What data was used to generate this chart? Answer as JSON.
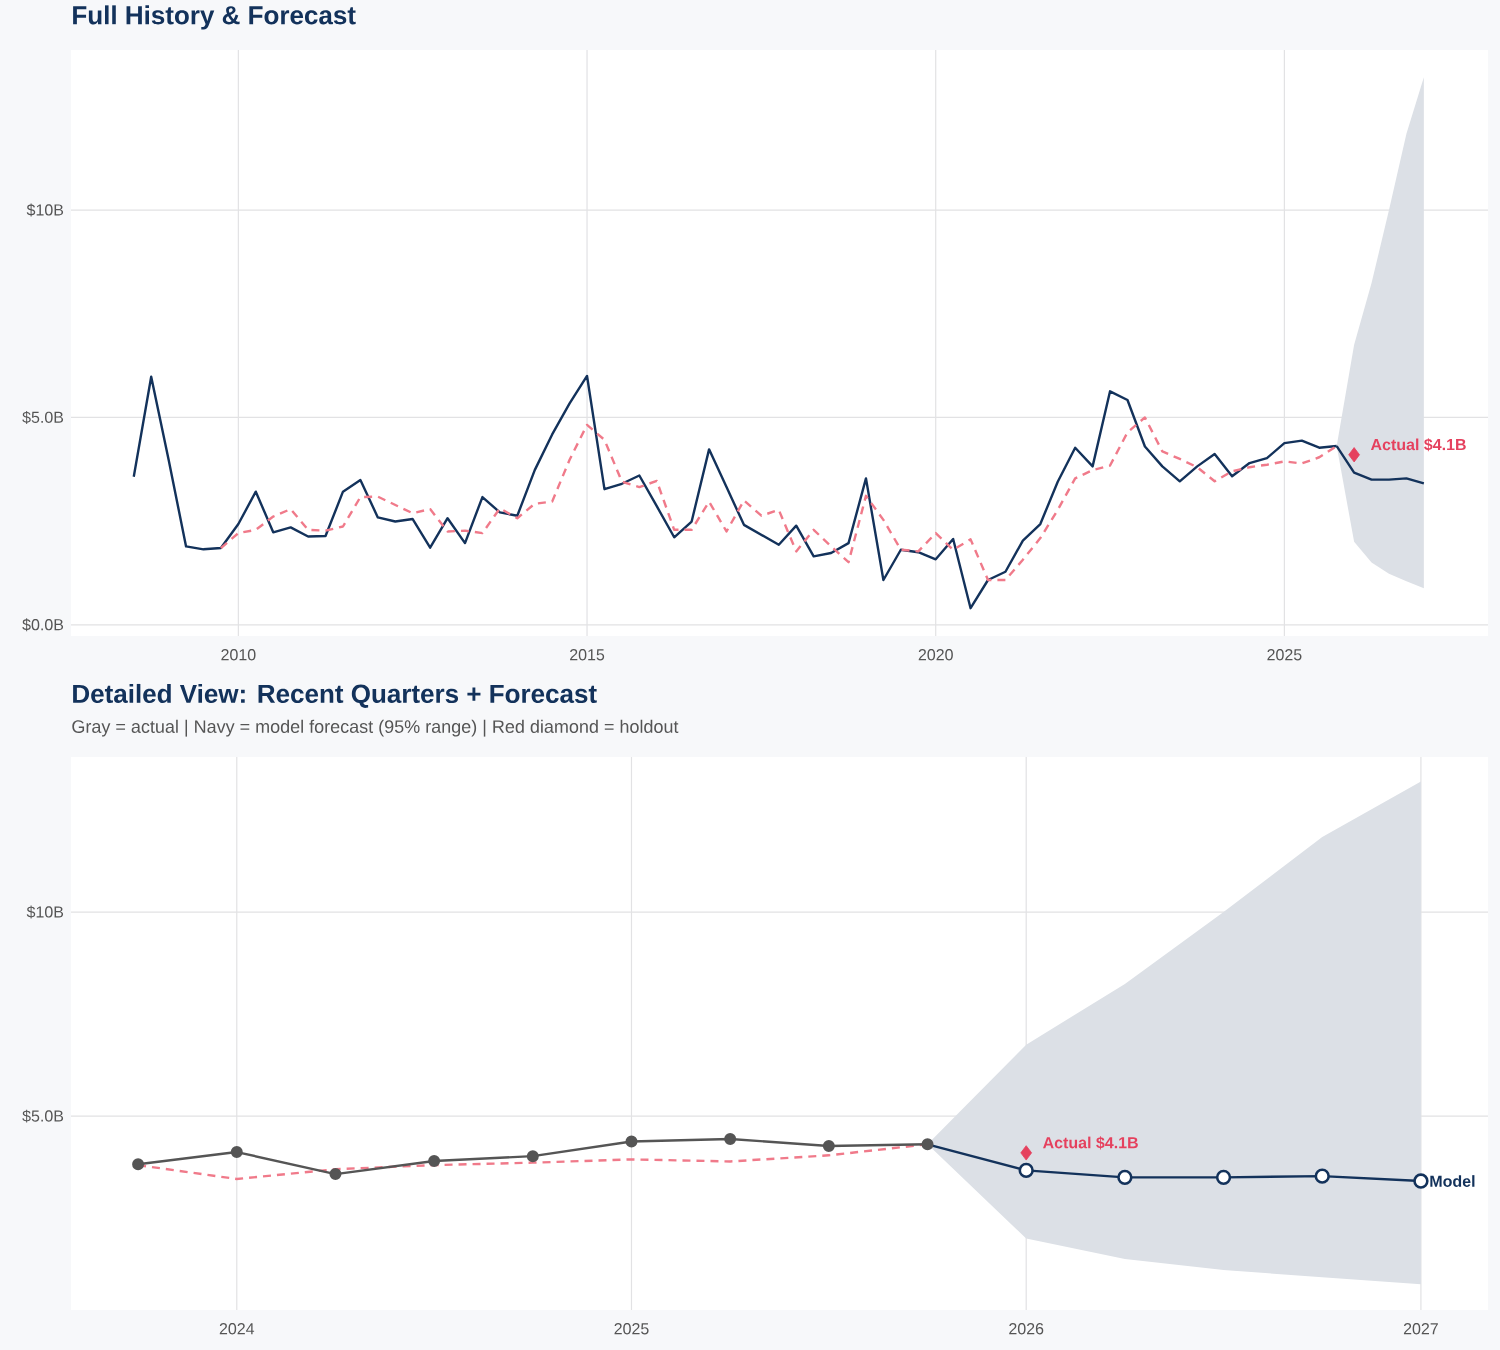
{
  "chart_data": [
    {
      "type": "line",
      "title": "Full History & Forecast",
      "xlim": [
        2007.6,
        2027.92
      ],
      "ylim": [
        -0.27,
        13.86
      ],
      "xticks": [
        2010,
        2015,
        2020,
        2025
      ],
      "yticks": [
        {
          "value": 0,
          "label": "$0.0B"
        },
        {
          "value": 5,
          "label": "$5.0B"
        },
        {
          "value": 10,
          "label": "$10B"
        }
      ],
      "grid": true,
      "annotations": [
        {
          "text": "Actual $4.1B",
          "x": 2026.0,
          "y": 4.1
        }
      ],
      "series": [
        {
          "type": "line",
          "color": "#13325b",
          "line_style": "solid",
          "marker": "none",
          "x": [
            2008.5,
            2008.75,
            2009.0,
            2009.25,
            2009.5,
            2009.75,
            2010.0,
            2010.25,
            2010.5,
            2010.75,
            2011.0,
            2011.25,
            2011.5,
            2011.75,
            2012.0,
            2012.25,
            2012.5,
            2012.75,
            2013.0,
            2013.25,
            2013.5,
            2013.75,
            2014.0,
            2014.25,
            2014.5,
            2014.75,
            2015.0,
            2015.25,
            2015.5,
            2015.75,
            2016.0,
            2016.25,
            2016.5,
            2016.75,
            2017.0,
            2017.25,
            2017.5,
            2017.75,
            2018.0,
            2018.25,
            2018.5,
            2018.75,
            2019.0,
            2019.25,
            2019.5,
            2019.75,
            2020.0,
            2020.25,
            2020.5,
            2020.75,
            2021.0,
            2021.25,
            2021.5,
            2021.75,
            2022.0,
            2022.25,
            2022.5,
            2022.75,
            2023.0,
            2023.25,
            2023.5,
            2023.75,
            2024.0,
            2024.25,
            2024.5,
            2024.75,
            2025.0,
            2025.25,
            2025.5,
            2025.75
          ],
          "values": [
            3.57,
            5.98,
            3.98,
            1.89,
            1.82,
            1.85,
            2.43,
            3.21,
            2.23,
            2.35,
            2.13,
            2.14,
            3.21,
            3.49,
            2.59,
            2.49,
            2.55,
            1.86,
            2.57,
            1.97,
            3.08,
            2.71,
            2.63,
            3.73,
            4.59,
            5.34,
            6.0,
            3.27,
            3.4,
            3.6,
            2.86,
            2.11,
            2.49,
            4.23,
            3.32,
            2.41,
            2.17,
            1.93,
            2.39,
            1.65,
            1.73,
            1.97,
            3.53,
            1.08,
            1.81,
            1.75,
            1.58,
            2.07,
            0.4,
            1.08,
            1.28,
            2.03,
            2.43,
            3.45,
            4.27,
            3.82,
            5.63,
            5.42,
            4.3,
            3.82,
            3.46,
            3.82,
            4.12,
            3.58,
            3.9,
            4.02,
            4.38,
            4.44,
            4.27,
            4.31
          ]
        },
        {
          "type": "line",
          "color": "#f07a8a",
          "line_style": "dashed",
          "marker": "none",
          "x": [
            2009.75,
            2010.0,
            2010.25,
            2010.5,
            2010.75,
            2011.0,
            2011.25,
            2011.5,
            2011.75,
            2012.0,
            2012.25,
            2012.5,
            2012.75,
            2013.0,
            2013.25,
            2013.5,
            2013.75,
            2014.0,
            2014.25,
            2014.5,
            2014.75,
            2015.0,
            2015.25,
            2015.5,
            2015.75,
            2016.0,
            2016.25,
            2016.5,
            2016.75,
            2017.0,
            2017.25,
            2017.5,
            2017.75,
            2018.0,
            2018.25,
            2018.5,
            2018.75,
            2019.0,
            2019.25,
            2019.5,
            2019.75,
            2020.0,
            2020.25,
            2020.5,
            2020.75,
            2021.0,
            2021.25,
            2021.5,
            2021.75,
            2022.0,
            2022.25,
            2022.5,
            2022.75,
            2023.0,
            2023.25,
            2023.5,
            2023.75,
            2024.0,
            2024.25,
            2024.5,
            2024.75,
            2025.0,
            2025.25,
            2025.5,
            2025.75
          ],
          "values": [
            1.85,
            2.21,
            2.29,
            2.61,
            2.79,
            2.29,
            2.27,
            2.37,
            3.08,
            3.09,
            2.89,
            2.69,
            2.79,
            2.25,
            2.27,
            2.21,
            2.81,
            2.57,
            2.92,
            2.97,
            3.98,
            4.82,
            4.46,
            3.45,
            3.32,
            3.47,
            2.29,
            2.29,
            2.97,
            2.25,
            3.0,
            2.63,
            2.77,
            1.77,
            2.29,
            1.89,
            1.51,
            3.11,
            2.53,
            1.81,
            1.77,
            2.21,
            1.81,
            2.06,
            1.08,
            1.08,
            1.57,
            2.09,
            2.77,
            3.53,
            3.73,
            3.84,
            4.64,
            5.0,
            4.18,
            4.0,
            3.8,
            3.46,
            3.7,
            3.8,
            3.86,
            3.94,
            3.89,
            4.04,
            4.31
          ]
        },
        {
          "color": "#13325b",
          "line_style": "solid",
          "marker": "none",
          "x": [
            2025.75,
            2026.0,
            2026.25,
            2026.5,
            2026.75,
            2027.0
          ],
          "values": [
            4.31,
            3.67,
            3.5,
            3.5,
            3.53,
            3.41
          ],
          "lower": [
            4.31,
            2.0,
            1.5,
            1.23,
            1.05,
            0.88
          ],
          "upper": [
            4.31,
            6.75,
            8.24,
            10.0,
            11.84,
            13.2
          ]
        },
        {
          "type": "scatter",
          "color": "#e5415e",
          "marker": "diamond",
          "x": [
            2026.0
          ],
          "values": [
            4.1
          ]
        }
      ]
    },
    {
      "type": "line",
      "title": "Detailed View: Recent Quarters + Forecast",
      "subtitle": "Gray = actual  |  Navy = model forecast (95% range)  |  Red diamond = holdout",
      "xlim": [
        2023.58,
        2027.17
      ],
      "ylim": [
        0.25,
        13.8
      ],
      "xticks": [
        2024,
        2025,
        2026,
        2027
      ],
      "yticks": [
        {
          "value": 5,
          "label": "$5.0B"
        },
        {
          "value": 10,
          "label": "$10B"
        }
      ],
      "grid": true,
      "annotations": [
        {
          "text": "Actual $4.1B",
          "x": 2026.0,
          "y": 4.1
        }
      ],
      "series": [
        {
          "type": "line",
          "color": "#f07a8a",
          "line_style": "dashed",
          "marker": "none",
          "x": [
            2023.75,
            2024.0,
            2024.25,
            2024.5,
            2024.75,
            2025.0,
            2025.25,
            2025.5,
            2025.75
          ],
          "values": [
            3.8,
            3.46,
            3.7,
            3.8,
            3.86,
            3.94,
            3.89,
            4.04,
            4.31
          ]
        },
        {
          "type": "line",
          "color": "#555555",
          "line_style": "solid",
          "marker": "circle",
          "x": [
            2023.75,
            2024.0,
            2024.25,
            2024.5,
            2024.75,
            2025.0,
            2025.25,
            2025.5,
            2025.75
          ],
          "values": [
            3.82,
            4.12,
            3.58,
            3.9,
            4.02,
            4.38,
            4.44,
            4.27,
            4.31
          ]
        },
        {
          "name": "Model",
          "color": "#13325b",
          "line_style": "solid",
          "marker": "circle",
          "x": [
            2025.75,
            2026.0,
            2026.25,
            2026.5,
            2026.75,
            2027.0
          ],
          "values": [
            4.31,
            3.67,
            3.5,
            3.5,
            3.53,
            3.41
          ],
          "lower": [
            4.31,
            2.0,
            1.5,
            1.23,
            1.05,
            0.88
          ],
          "upper": [
            4.31,
            6.75,
            8.24,
            10.0,
            11.84,
            13.2
          ]
        },
        {
          "type": "scatter",
          "color": "#e5415e",
          "marker": "diamond",
          "x": [
            2026.0
          ],
          "values": [
            4.1
          ]
        }
      ]
    }
  ]
}
